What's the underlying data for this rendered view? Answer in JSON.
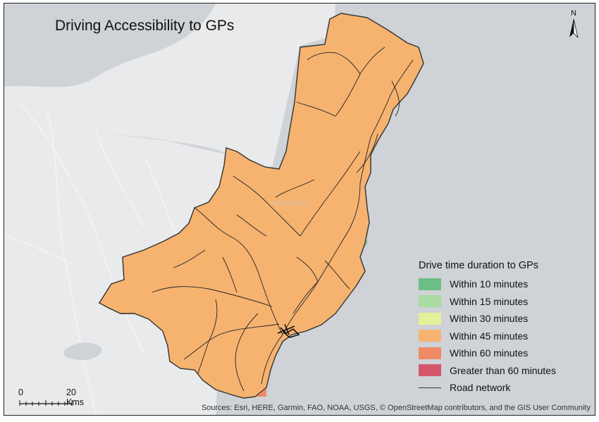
{
  "title": "Driving Accessibility to GPs",
  "north_label": "N",
  "legend": {
    "title": "Drive time duration to GPs",
    "items": [
      {
        "label": "Within 10 minutes",
        "color": "#6cbf84"
      },
      {
        "label": "Within 15 minutes",
        "color": "#a9dba2"
      },
      {
        "label": "Within 30 minutes",
        "color": "#e4f19a"
      },
      {
        "label": "Within 45 minutes",
        "color": "#f6b36f"
      },
      {
        "label": "Within 60 minutes",
        "color": "#f08a66"
      },
      {
        "label": "Greater than 60 minutes",
        "color": "#d4566b"
      }
    ],
    "road_label": "Road network"
  },
  "scale_bar": {
    "start_label": "0",
    "end_label": "20 Kms"
  },
  "attribution": "Sources: Esri, HERE, Garmin, FAO, NOAA, USGS, © OpenStreetMap contributors, and the GIS User Community",
  "colors": {
    "sea": "#cfd2d6",
    "land": "#e9eaeb",
    "boundary": "#444444",
    "road": "#222222"
  }
}
